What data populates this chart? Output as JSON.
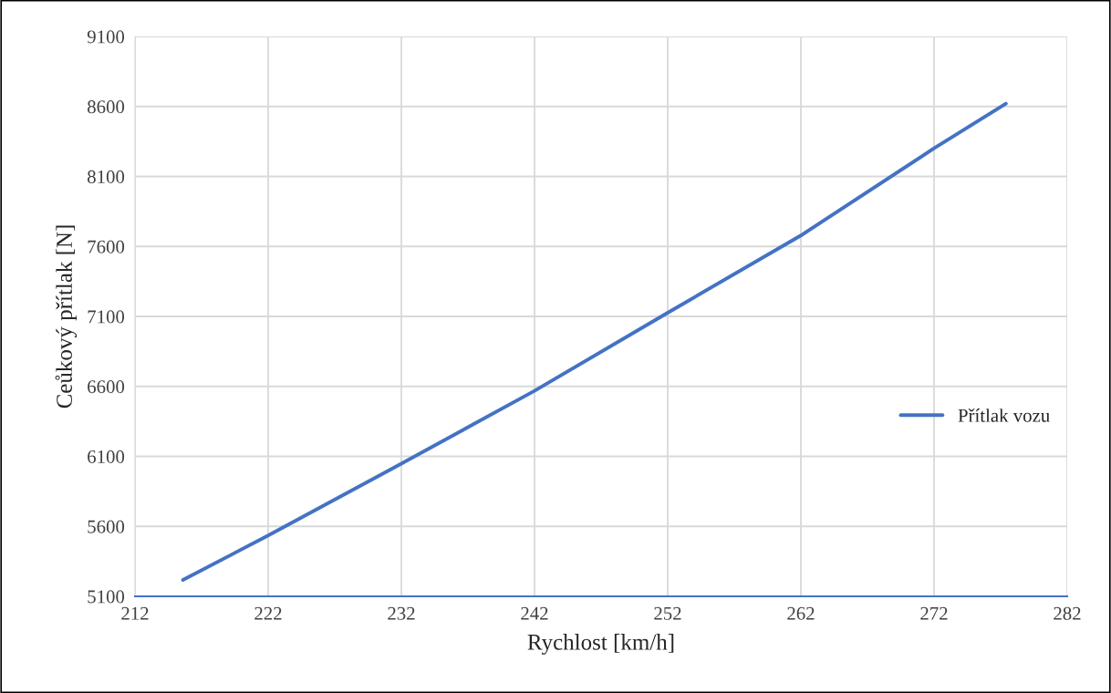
{
  "chart_data": {
    "type": "line",
    "xlabel": "Rychlost [km/h]",
    "ylabel": "Ceůkový přítlak [N]",
    "series": [
      {
        "name": "Přítlak vozu",
        "color": "#4472c4",
        "x": [
          215.6,
          222,
          232,
          242,
          252,
          262,
          272,
          277.4
        ],
        "values": [
          5217,
          5535,
          6048,
          6568,
          7126,
          7678,
          8301,
          8620
        ]
      }
    ],
    "xlim": [
      212,
      282
    ],
    "xticks": [
      212,
      222,
      232,
      242,
      252,
      262,
      272,
      282
    ],
    "ylim": [
      5100,
      9100
    ],
    "yticks": [
      5100,
      5600,
      6100,
      6600,
      7100,
      7600,
      8100,
      8600,
      9100
    ],
    "grid": true,
    "legend": "right",
    "marker": "none",
    "line_style": "solid"
  }
}
